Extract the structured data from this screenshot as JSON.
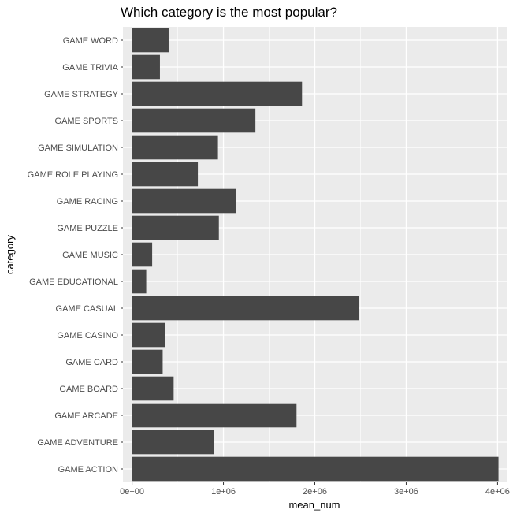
{
  "chart_data": {
    "type": "bar",
    "orientation": "horizontal",
    "title": "Which category is the most popular?",
    "xlabel": "mean_num",
    "ylabel": "category",
    "categories": [
      "GAME ACTION",
      "GAME ADVENTURE",
      "GAME ARCADE",
      "GAME BOARD",
      "GAME CARD",
      "GAME CASINO",
      "GAME CASUAL",
      "GAME EDUCATIONAL",
      "GAME MUSIC",
      "GAME PUZZLE",
      "GAME RACING",
      "GAME ROLE PLAYING",
      "GAME SIMULATION",
      "GAME SPORTS",
      "GAME STRATEGY",
      "GAME TRIVIA",
      "GAME WORD"
    ],
    "values": [
      4010000,
      900000,
      1800000,
      455000,
      335000,
      360000,
      2480000,
      155000,
      220000,
      950000,
      1140000,
      720000,
      940000,
      1350000,
      1860000,
      305000,
      400000
    ],
    "xlim": [
      -100000,
      4100000
    ],
    "x_ticks": [
      0,
      1000000,
      2000000,
      3000000,
      4000000
    ],
    "x_tick_labels": [
      "0e+00",
      "1e+06",
      "2e+06",
      "3e+06",
      "4e+06"
    ],
    "grid": true,
    "colors": {
      "panel": "#ebebeb",
      "grid": "#ffffff",
      "bar": "#474747",
      "tick": "#333333"
    }
  }
}
